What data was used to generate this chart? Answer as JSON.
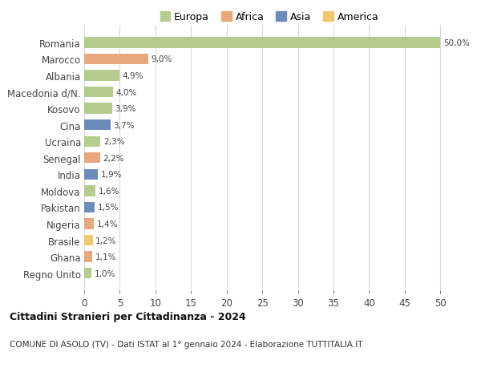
{
  "categories": [
    "Romania",
    "Marocco",
    "Albania",
    "Macedonia d/N.",
    "Kosovo",
    "Cina",
    "Ucraina",
    "Senegal",
    "India",
    "Moldova",
    "Pakistan",
    "Nigeria",
    "Brasile",
    "Ghana",
    "Regno Unito"
  ],
  "values": [
    50.0,
    9.0,
    4.9,
    4.0,
    3.9,
    3.7,
    2.3,
    2.2,
    1.9,
    1.6,
    1.5,
    1.4,
    1.2,
    1.1,
    1.0
  ],
  "labels": [
    "50,0%",
    "9,0%",
    "4,9%",
    "4,0%",
    "3,9%",
    "3,7%",
    "2,3%",
    "2,2%",
    "1,9%",
    "1,6%",
    "1,5%",
    "1,4%",
    "1,2%",
    "1,1%",
    "1,0%"
  ],
  "bar_colors": [
    "#b5cc8e",
    "#e8a87c",
    "#b5cc8e",
    "#b5cc8e",
    "#b5cc8e",
    "#6b8cba",
    "#b5cc8e",
    "#e8a87c",
    "#6b8cba",
    "#b5cc8e",
    "#6b8cba",
    "#e8a87c",
    "#f0c96e",
    "#e8a87c",
    "#b5cc8e"
  ],
  "continent": [
    "Europa",
    "Africa",
    "Europa",
    "Europa",
    "Europa",
    "Asia",
    "Europa",
    "Africa",
    "Asia",
    "Europa",
    "Asia",
    "Africa",
    "America",
    "Africa",
    "Europa"
  ],
  "legend_labels": [
    "Europa",
    "Africa",
    "Asia",
    "America"
  ],
  "legend_colors": [
    "#b5cc8e",
    "#e8a87c",
    "#6b8cba",
    "#f0c96e"
  ],
  "title": "Cittadini Stranieri per Cittadinanza - 2024",
  "subtitle": "COMUNE DI ASOLO (TV) - Dati ISTAT al 1° gennaio 2024 - Elaborazione TUTTITALIA.IT",
  "xlim": [
    0,
    52
  ],
  "xticks": [
    0,
    5,
    10,
    15,
    20,
    25,
    30,
    35,
    40,
    45,
    50
  ],
  "background_color": "#ffffff",
  "grid_color": "#d8d8d8"
}
